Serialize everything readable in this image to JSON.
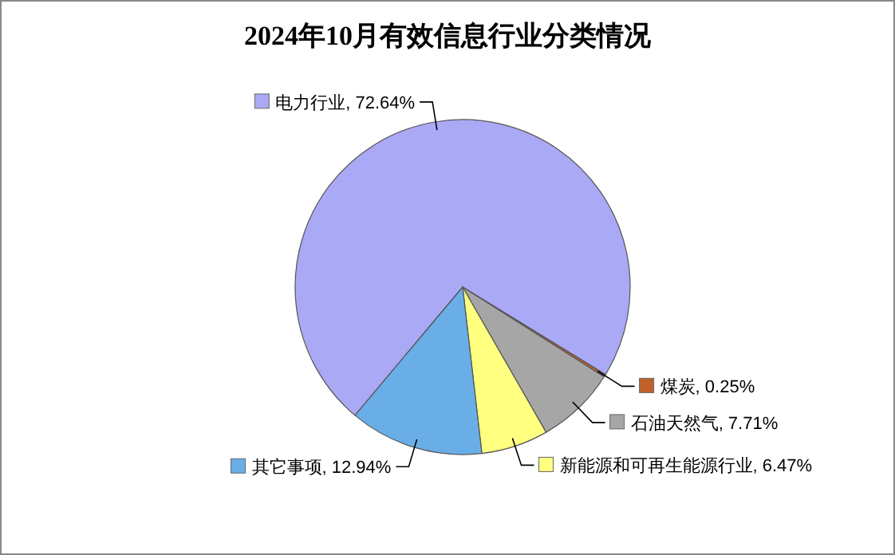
{
  "chart_data": {
    "type": "pie",
    "title": "2024年10月有效信息行业分类情况",
    "categories": [
      "电力行业",
      "煤炭",
      "石油天然气",
      "新能源和可再生能源行业",
      "其它事项"
    ],
    "values": [
      72.64,
      0.25,
      7.71,
      6.47,
      12.94
    ],
    "colors": [
      "#a9a9f5",
      "#c0622a",
      "#a6a6a6",
      "#ffff80",
      "#6aaee8"
    ],
    "legend": "right",
    "value_labels": [
      ", 72.64%",
      ", 0.25%",
      ", 7.71%",
      ", 6.47%",
      ", 12.94%"
    ]
  }
}
